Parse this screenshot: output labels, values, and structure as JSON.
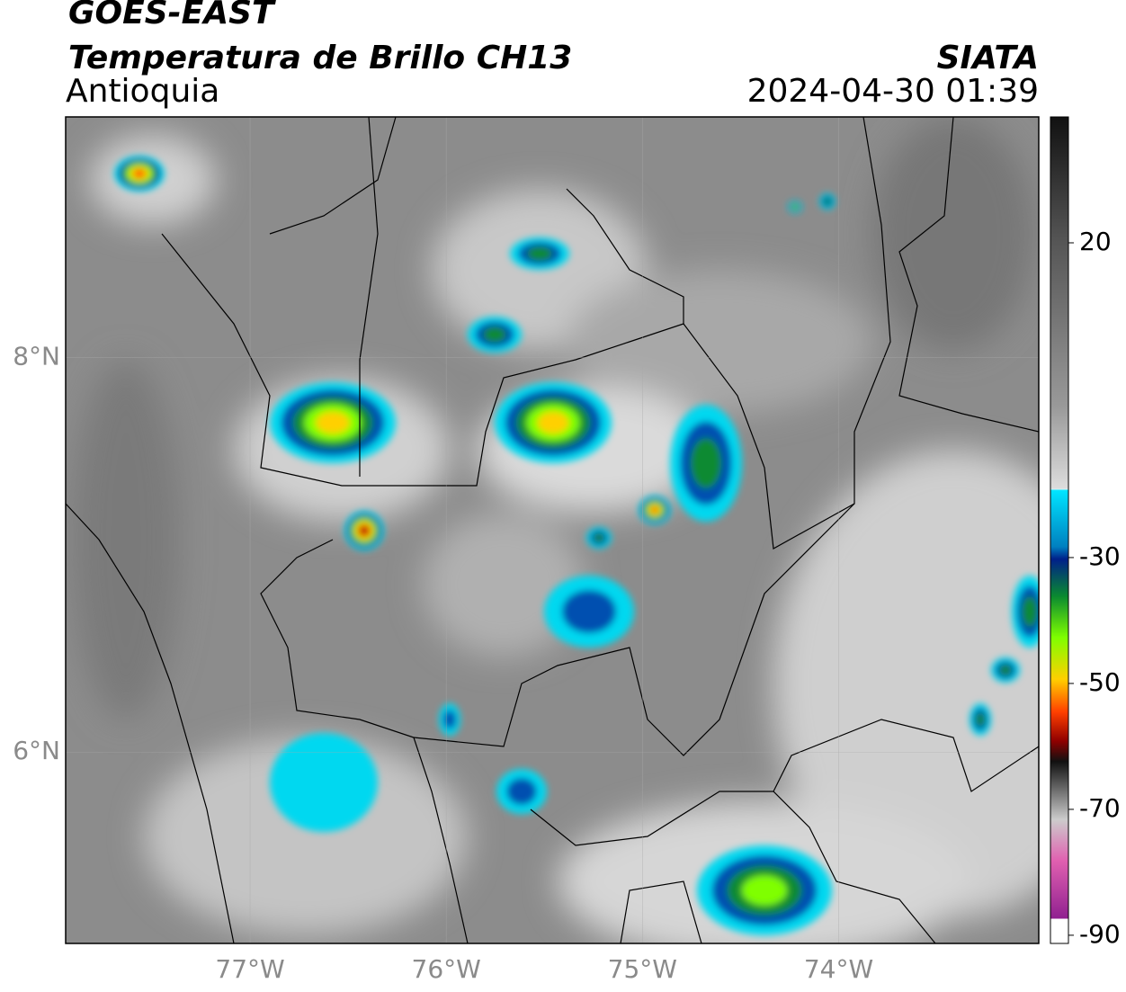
{
  "header": {
    "title": "GOES-EAST",
    "subtitle": "Temperatura de Brillo CH13",
    "region": "Antioquia",
    "source": "SIATA",
    "datetime": "2024-04-30 01:39"
  },
  "map": {
    "xlim": [
      -77.94,
      -72.98
    ],
    "ylim": [
      5.03,
      9.22
    ],
    "xticks": [
      {
        "value": -77,
        "label": "77°W"
      },
      {
        "value": -76,
        "label": "76°W"
      },
      {
        "value": -75,
        "label": "75°W"
      },
      {
        "value": -74,
        "label": "74°W"
      }
    ],
    "yticks": [
      {
        "value": 8,
        "label": "8°N"
      },
      {
        "value": 6,
        "label": "6°N"
      }
    ],
    "grid": true
  },
  "colorbar": {
    "lim": [
      -91.3,
      40
    ],
    "ticks": [
      20,
      -30,
      -50,
      -70,
      -90
    ]
  }
}
